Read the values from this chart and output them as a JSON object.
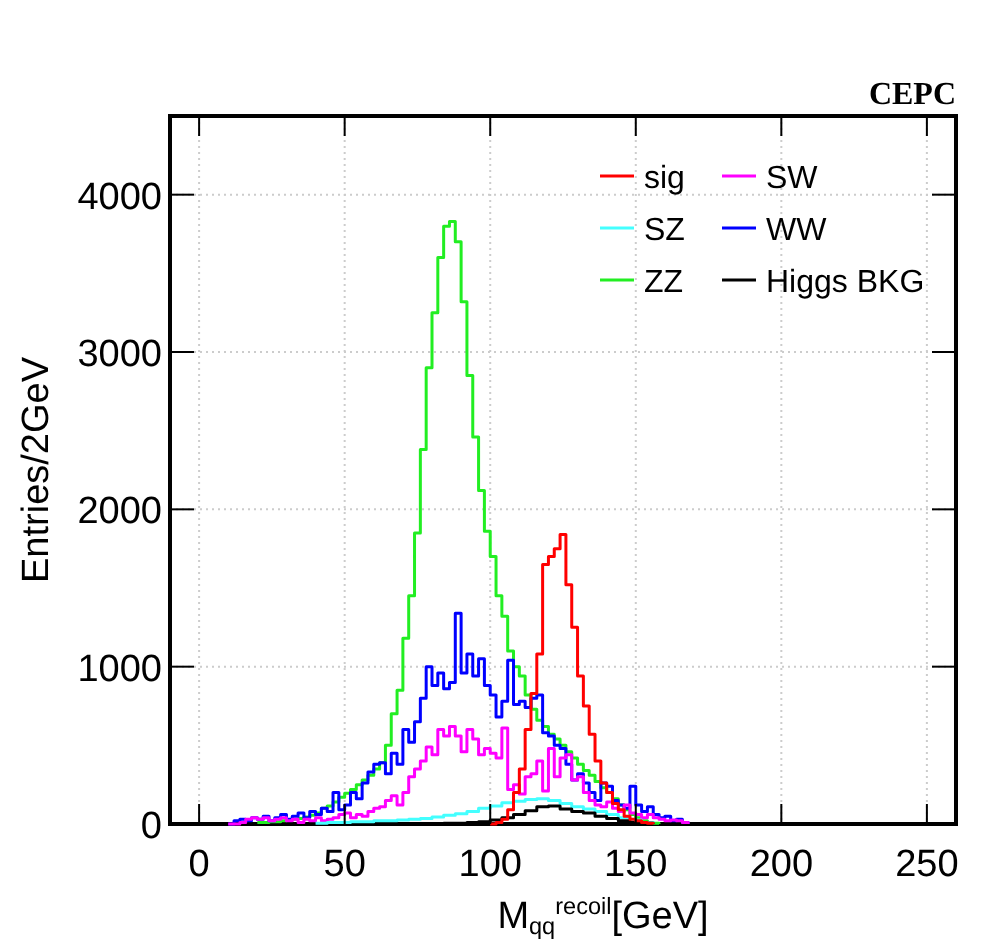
{
  "chart_data": {
    "type": "step",
    "xlabel": "M$_{qq}$$^{recoil}$[GeV]",
    "ylabel": "Entries/2GeV",
    "annotations": [
      "CEPC"
    ],
    "xlim": [
      -10,
      260
    ],
    "ylim": [
      0,
      4500
    ],
    "xticks": [
      0,
      50,
      100,
      150,
      200,
      250
    ],
    "yticks": [
      0,
      1000,
      2000,
      3000,
      4000
    ],
    "grid": true,
    "legend": "top right",
    "series": [
      {
        "name": "ZZ",
        "color": "#22ee22",
        "x": [
          20,
          22,
          24,
          26,
          28,
          30,
          32,
          34,
          36,
          38,
          40,
          42,
          44,
          46,
          48,
          50,
          52,
          54,
          56,
          58,
          60,
          62,
          64,
          66,
          68,
          70,
          72,
          74,
          76,
          78,
          80,
          82,
          84,
          86,
          88,
          90,
          92,
          94,
          96,
          98,
          100,
          102,
          104,
          106,
          108,
          110,
          112,
          114,
          116,
          118,
          120,
          122,
          124,
          126,
          128,
          130,
          132,
          134,
          136,
          138,
          140,
          142,
          144,
          146,
          148,
          150,
          152,
          154,
          156,
          158
        ],
        "values": [
          10,
          10,
          15,
          15,
          20,
          25,
          30,
          35,
          45,
          55,
          70,
          100,
          115,
          140,
          170,
          195,
          220,
          250,
          280,
          310,
          350,
          390,
          500,
          700,
          850,
          1180,
          1450,
          1850,
          2380,
          2900,
          3250,
          3600,
          3800,
          3830,
          3700,
          3320,
          2850,
          2460,
          2120,
          1860,
          1700,
          1450,
          1320,
          1100,
          1000,
          940,
          820,
          730,
          660,
          620,
          570,
          540,
          500,
          460,
          420,
          380,
          340,
          310,
          270,
          230,
          200,
          160,
          120,
          90,
          60,
          40,
          20,
          10,
          5,
          0
        ]
      },
      {
        "name": "WW",
        "color": "#0000ff",
        "x": [
          10,
          12,
          14,
          16,
          18,
          20,
          22,
          24,
          26,
          28,
          30,
          32,
          34,
          36,
          38,
          40,
          42,
          44,
          46,
          48,
          50,
          52,
          54,
          56,
          58,
          60,
          62,
          64,
          66,
          68,
          70,
          72,
          74,
          76,
          78,
          80,
          82,
          84,
          86,
          88,
          90,
          92,
          94,
          96,
          98,
          100,
          102,
          104,
          106,
          108,
          110,
          112,
          114,
          116,
          118,
          120,
          122,
          124,
          126,
          128,
          130,
          132,
          134,
          136,
          138,
          140,
          142,
          144,
          146,
          148,
          150,
          152,
          154,
          156,
          158,
          160,
          162,
          164,
          166,
          168
        ],
        "values": [
          0,
          20,
          30,
          20,
          40,
          30,
          50,
          20,
          40,
          60,
          30,
          50,
          70,
          40,
          80,
          60,
          100,
          80,
          200,
          90,
          120,
          200,
          160,
          260,
          330,
          380,
          390,
          320,
          450,
          380,
          600,
          520,
          650,
          800,
          1000,
          880,
          960,
          860,
          900,
          1340,
          960,
          1080,
          940,
          1050,
          880,
          820,
          680,
          780,
          1040,
          760,
          780,
          740,
          800,
          820,
          580,
          560,
          500,
          480,
          380,
          280,
          320,
          260,
          200,
          150,
          260,
          240,
          150,
          120,
          100,
          240,
          120,
          80,
          110,
          60,
          40,
          50,
          20,
          30,
          10,
          0
        ]
      },
      {
        "name": "SW",
        "color": "#ff00ff",
        "x": [
          10,
          12,
          14,
          16,
          18,
          20,
          22,
          24,
          26,
          28,
          30,
          32,
          34,
          36,
          38,
          40,
          42,
          44,
          46,
          48,
          50,
          52,
          54,
          56,
          58,
          60,
          62,
          64,
          66,
          68,
          70,
          72,
          74,
          76,
          78,
          80,
          82,
          84,
          86,
          88,
          90,
          92,
          94,
          96,
          98,
          100,
          102,
          104,
          106,
          108,
          110,
          112,
          114,
          116,
          118,
          120,
          122,
          124,
          126,
          128,
          130,
          132,
          134,
          136,
          138,
          140,
          142,
          144,
          146,
          148,
          150,
          152,
          154,
          156,
          158,
          160,
          162,
          164,
          166,
          168
        ],
        "values": [
          0,
          0,
          10,
          30,
          40,
          30,
          40,
          20,
          30,
          40,
          20,
          30,
          10,
          30,
          20,
          40,
          20,
          30,
          40,
          60,
          70,
          40,
          60,
          50,
          80,
          100,
          110,
          150,
          180,
          120,
          200,
          300,
          350,
          400,
          490,
          440,
          600,
          560,
          620,
          560,
          460,
          600,
          540,
          440,
          480,
          450,
          420,
          610,
          220,
          250,
          190,
          300,
          320,
          400,
          210,
          480,
          300,
          420,
          440,
          280,
          300,
          200,
          150,
          120,
          110,
          140,
          100,
          80,
          120,
          70,
          60,
          40,
          60,
          40,
          30,
          20,
          25,
          20,
          10,
          0
        ]
      },
      {
        "name": "SZ",
        "color": "#44ffff",
        "x": [
          40,
          44,
          48,
          52,
          56,
          60,
          64,
          68,
          72,
          76,
          80,
          84,
          88,
          92,
          96,
          100,
          104,
          108,
          112,
          116,
          120,
          124,
          128,
          132,
          136,
          140,
          144,
          148,
          152,
          156
        ],
        "values": [
          5,
          10,
          10,
          15,
          15,
          20,
          20,
          25,
          30,
          35,
          45,
          55,
          65,
          80,
          100,
          115,
          135,
          145,
          155,
          160,
          150,
          130,
          110,
          95,
          80,
          60,
          40,
          25,
          10,
          0
        ]
      },
      {
        "name": "Higgs BKG",
        "color": "#000000",
        "x": [
          80,
          84,
          88,
          92,
          96,
          100,
          104,
          108,
          112,
          116,
          120,
          124,
          128,
          132,
          136,
          140,
          144,
          148,
          152,
          156
        ],
        "values": [
          0,
          5,
          5,
          10,
          15,
          25,
          40,
          60,
          85,
          110,
          115,
          95,
          80,
          70,
          50,
          35,
          20,
          10,
          5,
          0
        ]
      },
      {
        "name": "sig",
        "color": "#ff0000",
        "x": [
          100,
          102,
          104,
          106,
          108,
          110,
          112,
          114,
          116,
          118,
          120,
          122,
          124,
          126,
          128,
          130,
          132,
          134,
          136,
          138,
          140,
          142,
          144,
          146,
          148,
          150,
          152,
          154,
          156
        ],
        "values": [
          0,
          10,
          30,
          90,
          200,
          350,
          600,
          830,
          1080,
          1650,
          1700,
          1750,
          1840,
          1520,
          1250,
          940,
          750,
          570,
          400,
          260,
          200,
          130,
          90,
          50,
          30,
          20,
          10,
          5,
          0
        ]
      }
    ],
    "data_labels": false
  }
}
